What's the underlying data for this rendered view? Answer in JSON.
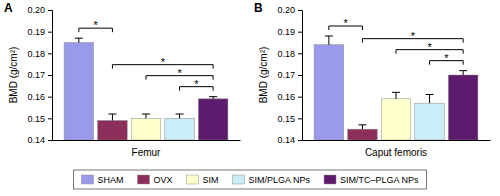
{
  "chart_data": [
    {
      "type": "bar",
      "title": "A",
      "y_label": "BMD (g/cm²)",
      "categories": [
        "Femur"
      ],
      "series": [
        {
          "name": "SHAM",
          "color": "#9a9aec",
          "values": [
            0.185
          ],
          "errors": [
            0.002
          ]
        },
        {
          "name": "OVX",
          "color": "#8c2e5c",
          "values": [
            0.149
          ],
          "errors": [
            0.003
          ]
        },
        {
          "name": "SIM",
          "color": "#ffffcc",
          "values": [
            0.15
          ],
          "errors": [
            0.002
          ]
        },
        {
          "name": "SIM/PLGA NPs",
          "color": "#c9eef7",
          "values": [
            0.15
          ],
          "errors": [
            0.002
          ]
        },
        {
          "name": "SIM/TC–PLGA NPs",
          "color": "#5e1a6c",
          "values": [
            0.159
          ],
          "errors": [
            0.001
          ]
        }
      ],
      "ylim": [
        0.14,
        0.2
      ],
      "yticks": [
        0.14,
        0.15,
        0.16,
        0.17,
        0.18,
        0.19,
        {
          "value": 0.2,
          "label": "0.20"
        }
      ],
      "annotations": [
        {
          "text": "*",
          "groups": [
            "SHAM",
            "OVX"
          ]
        },
        {
          "text": "*",
          "groups": [
            "OVX",
            "SIM/TC–PLGA NPs"
          ]
        },
        {
          "text": "*",
          "groups": [
            "SIM",
            "SIM/TC–PLGA NPs"
          ]
        },
        {
          "text": "*",
          "groups": [
            "SIM/PLGA NPs",
            "SIM/TC–PLGA NPs"
          ]
        }
      ],
      "legend": "bottom"
    },
    {
      "type": "bar",
      "title": "B",
      "y_label": "BMD (g/cm²)",
      "categories": [
        "Caput femoris"
      ],
      "series": [
        {
          "name": "SHAM",
          "color": "#9a9aec",
          "values": [
            0.184
          ],
          "errors": [
            0.004
          ]
        },
        {
          "name": "OVX",
          "color": "#8c2e5c",
          "values": [
            0.145
          ],
          "errors": [
            0.002
          ]
        },
        {
          "name": "SIM",
          "color": "#ffffcc",
          "values": [
            0.159
          ],
          "errors": [
            0.003
          ]
        },
        {
          "name": "SIM/PLGA NPs",
          "color": "#c9eef7",
          "values": [
            0.157
          ],
          "errors": [
            0.004
          ]
        },
        {
          "name": "SIM/TC–PLGA NPs",
          "color": "#5e1a6c",
          "values": [
            0.17
          ],
          "errors": [
            0.002
          ]
        }
      ],
      "ylim": [
        0.14,
        0.2
      ],
      "yticks": [
        0.14,
        0.15,
        0.16,
        0.17,
        0.18,
        0.19,
        {
          "value": 0.2,
          "label": "0.20"
        }
      ],
      "annotations": [
        {
          "text": "*",
          "groups": [
            "SHAM",
            "OVX"
          ]
        },
        {
          "text": "*",
          "groups": [
            "OVX",
            "SIM/TC–PLGA NPs"
          ]
        },
        {
          "text": "*",
          "groups": [
            "SIM",
            "SIM/TC–PLGA NPs"
          ]
        },
        {
          "text": "*",
          "groups": [
            "SIM/PLGA NPs",
            "SIM/TC–PLGA NPs"
          ]
        }
      ]
    }
  ]
}
